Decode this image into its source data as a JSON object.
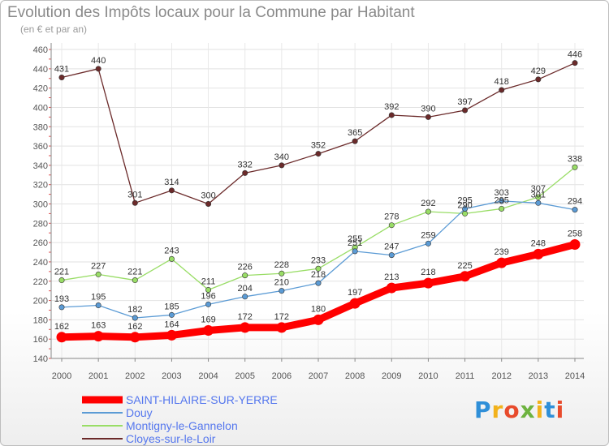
{
  "header": {
    "title": "Evolution des Impôts locaux pour la Commune par Habitant",
    "subtitle": "(en € et par an)"
  },
  "logo": {
    "letters": [
      "P",
      "r",
      "o",
      "x",
      "i",
      "t",
      "i"
    ],
    "colors": [
      "#2f8fd8",
      "#f2b21b",
      "#e84b2c",
      "#6db33f",
      "#f2b21b",
      "#2f8fd8",
      "#e84b2c"
    ]
  },
  "chart_data": {
    "type": "line",
    "title": "Evolution des Impôts locaux pour la Commune par Habitant",
    "subtitle": "(en € et par an)",
    "xlabel": "",
    "ylabel": "",
    "x": [
      "2000",
      "2001",
      "2002",
      "2003",
      "2004",
      "2005",
      "2006",
      "2007",
      "2008",
      "2009",
      "2010",
      "2011",
      "2012",
      "2013",
      "2014"
    ],
    "ylim": [
      140,
      460
    ],
    "yticks": [
      140,
      160,
      180,
      200,
      220,
      240,
      260,
      280,
      300,
      320,
      340,
      360,
      380,
      400,
      420,
      440,
      460
    ],
    "grid": true,
    "legend_position": "bottom-left",
    "series": [
      {
        "name": "SAINT-HILAIRE-SUR-YERRE",
        "color": "#ff0000",
        "emphasis": "bold",
        "values": [
          162,
          163,
          162,
          164,
          169,
          172,
          172,
          180,
          197,
          213,
          218,
          225,
          239,
          248,
          258
        ]
      },
      {
        "name": "Douy",
        "color": "#5b9bd5",
        "values": [
          193,
          195,
          182,
          185,
          196,
          204,
          210,
          218,
          251,
          247,
          259,
          295,
          303,
          301,
          294
        ]
      },
      {
        "name": "Montigny-le-Gannelon",
        "color": "#99dd66",
        "values": [
          221,
          227,
          221,
          243,
          211,
          226,
          228,
          233,
          255,
          278,
          292,
          290,
          295,
          307,
          338
        ]
      },
      {
        "name": "Cloyes-sur-le-Loir",
        "color": "#6b2a2a",
        "values": [
          431,
          440,
          301,
          314,
          300,
          332,
          340,
          352,
          365,
          392,
          390,
          397,
          418,
          429,
          446
        ]
      }
    ]
  }
}
